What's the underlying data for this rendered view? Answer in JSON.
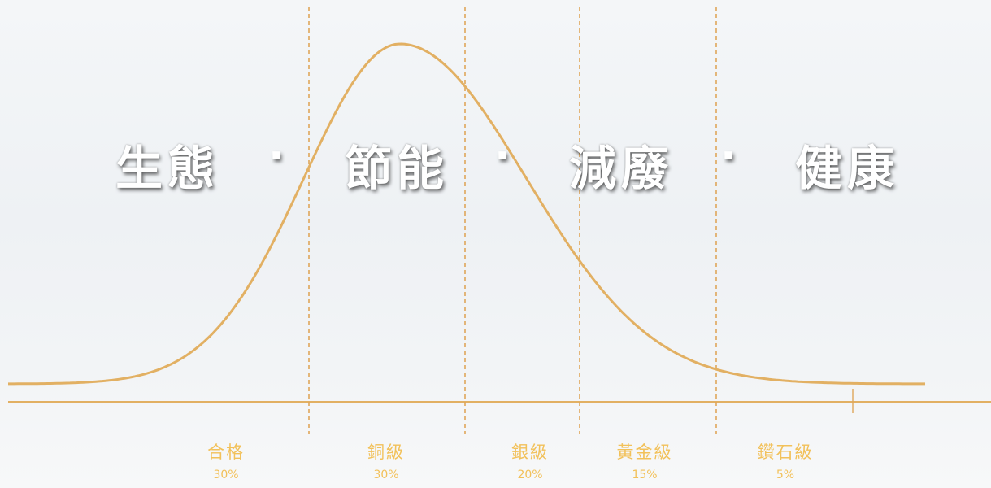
{
  "headline": {
    "words": [
      "生態",
      "節能",
      "減廢",
      "健康"
    ],
    "separator": "·"
  },
  "colors": {
    "curve": "#e2b063",
    "divider": "#dfa65a",
    "label": "#f2c15a"
  },
  "chart_data": {
    "type": "area",
    "title": "",
    "xlabel": "",
    "ylabel": "",
    "description_of_shape": "bell-shaped distribution split into five grade bands",
    "categories": [
      "合格",
      "銅級",
      "銀級",
      "黃金級",
      "鑽石級"
    ],
    "percent_labels": [
      "30%",
      "30%",
      "20%",
      "15%",
      "5%"
    ],
    "values": [
      30,
      30,
      20,
      15,
      5
    ],
    "grid": false,
    "legend": "none"
  }
}
